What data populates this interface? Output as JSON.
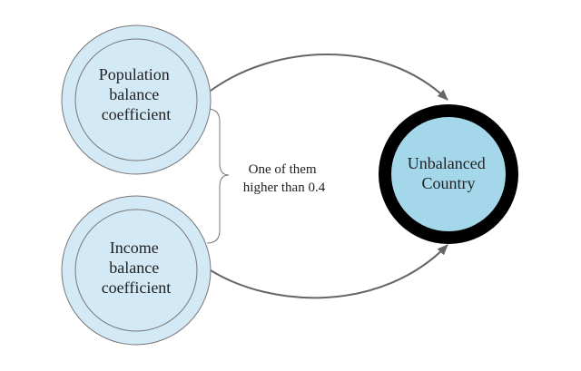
{
  "nodes": {
    "population": {
      "label_lines": [
        "Population",
        "balance",
        "coefficient"
      ],
      "fill": "#d3e9f5",
      "stroke": "#777777"
    },
    "income": {
      "label_lines": [
        "Income",
        "balance",
        "coefficient"
      ],
      "fill": "#d3e9f5",
      "stroke": "#777777"
    },
    "unbalanced": {
      "label_lines": [
        "Unbalanced",
        "Country"
      ],
      "fill": "#a4d7ea",
      "ring_color": "#000000"
    }
  },
  "condition": {
    "label_lines": [
      "One of them",
      "higher than 0.4"
    ]
  },
  "colors": {
    "arrow": "#666666",
    "brace": "#777777",
    "text": "#222222"
  }
}
